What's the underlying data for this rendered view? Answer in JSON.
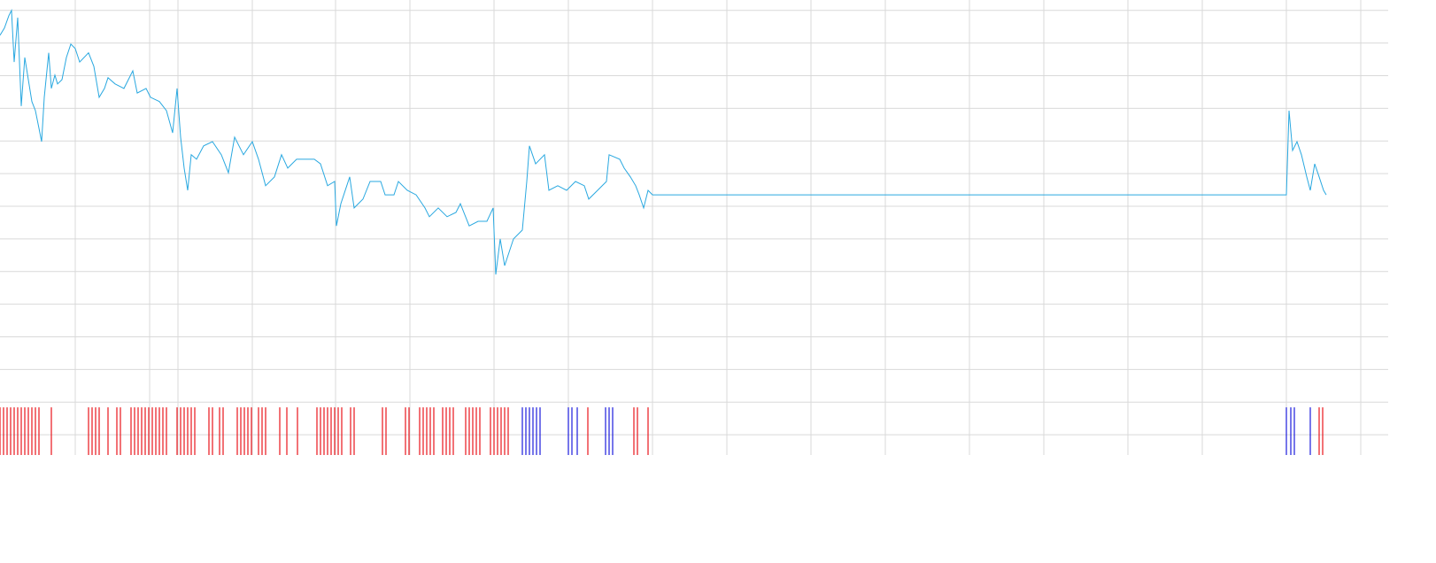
{
  "chart_data": {
    "type": "line",
    "grid": true,
    "xlim": [
      0,
      1568
    ],
    "ylim": [
      -0.62,
      13.32
    ],
    "xticks": [
      85,
      169,
      201,
      285,
      379,
      463,
      558,
      642,
      737,
      821,
      916,
      1000,
      1095,
      1179,
      1274,
      1358,
      1453,
      1537
    ],
    "yticks": [
      0,
      1,
      2,
      3,
      4,
      5,
      6,
      7,
      8,
      9,
      10,
      11,
      12,
      13
    ],
    "x": [
      0,
      5,
      10,
      13,
      16,
      20,
      24,
      28,
      32,
      36,
      40,
      44,
      47,
      50,
      55,
      58,
      62,
      65,
      70,
      75,
      80,
      85,
      90,
      100,
      106,
      112,
      118,
      122,
      130,
      140,
      150,
      155,
      165,
      170,
      180,
      188,
      195,
      200,
      204,
      208,
      212,
      216,
      222,
      230,
      240,
      250,
      258,
      265,
      275,
      285,
      292,
      300,
      310,
      318,
      325,
      335,
      345,
      355,
      362,
      370,
      378,
      380,
      385,
      395,
      400,
      410,
      418,
      430,
      435,
      445,
      450,
      460,
      470,
      480,
      485,
      495,
      505,
      515,
      520,
      530,
      540,
      550,
      557,
      560,
      565,
      570,
      575,
      580,
      590,
      595,
      598,
      605,
      615,
      620,
      630,
      640,
      650,
      660,
      665,
      675,
      685,
      688,
      700,
      705,
      712,
      718,
      722,
      727,
      732,
      737,
      1453,
      1456,
      1460,
      1465,
      1470,
      1476,
      1480,
      1485,
      1490,
      1495,
      1498
    ],
    "series": [
      {
        "color": "#29a8e0",
        "values": [
          12.24,
          12.46,
          12.84,
          13.0,
          11.42,
          12.78,
          10.07,
          11.56,
          10.88,
          10.21,
          9.93,
          9.39,
          8.98,
          10.34,
          11.7,
          10.61,
          11.02,
          10.75,
          10.88,
          11.56,
          11.97,
          11.83,
          11.42,
          11.7,
          11.29,
          10.34,
          10.61,
          10.94,
          10.75,
          10.61,
          11.15,
          10.47,
          10.61,
          10.34,
          10.21,
          9.93,
          9.25,
          10.61,
          9.12,
          8.17,
          7.49,
          8.58,
          8.44,
          8.85,
          8.98,
          8.58,
          8.03,
          9.12,
          8.58,
          8.98,
          8.44,
          7.63,
          7.9,
          8.58,
          8.17,
          8.44,
          8.44,
          8.44,
          8.3,
          7.63,
          7.76,
          6.4,
          7.08,
          7.9,
          6.95,
          7.22,
          7.76,
          7.76,
          7.35,
          7.35,
          7.76,
          7.49,
          7.35,
          6.95,
          6.68,
          6.95,
          6.68,
          6.81,
          7.08,
          6.4,
          6.54,
          6.54,
          6.95,
          4.91,
          6.0,
          5.18,
          5.59,
          6.0,
          6.27,
          7.76,
          8.85,
          8.3,
          8.58,
          7.49,
          7.63,
          7.49,
          7.76,
          7.63,
          7.22,
          7.49,
          7.76,
          8.58,
          8.44,
          8.17,
          7.9,
          7.63,
          7.35,
          6.95,
          7.49,
          7.35,
          7.35,
          9.93,
          8.71,
          8.98,
          8.58,
          7.9,
          7.49,
          8.3,
          7.9,
          7.49,
          7.35
        ]
      }
    ],
    "markers": [
      {
        "color": "#e8141a",
        "x": [
          0,
          4,
          8,
          12,
          16,
          20,
          24,
          28,
          32,
          36,
          40,
          44,
          58,
          100,
          104,
          108,
          112,
          122,
          132,
          136,
          148,
          152,
          156,
          160,
          164,
          168,
          172,
          176,
          180,
          184,
          188,
          200,
          204,
          208,
          212,
          216,
          220,
          236,
          240,
          248,
          252,
          268,
          272,
          276,
          280,
          284,
          292,
          296,
          300,
          316,
          324,
          336,
          358,
          362,
          366,
          370,
          374,
          378,
          382,
          386,
          396,
          400,
          432,
          436,
          458,
          462,
          474,
          478,
          482,
          486,
          490,
          500,
          504,
          508,
          512,
          526,
          530,
          534,
          538,
          542,
          554,
          558,
          562,
          566,
          570,
          574,
          664,
          716,
          720,
          732,
          1490,
          1494
        ]
      },
      {
        "color": "#1a1adc",
        "x": [
          590,
          594,
          598,
          602,
          606,
          610,
          642,
          646,
          652,
          684,
          688,
          692,
          1453,
          1458,
          1462,
          1480
        ]
      }
    ]
  }
}
